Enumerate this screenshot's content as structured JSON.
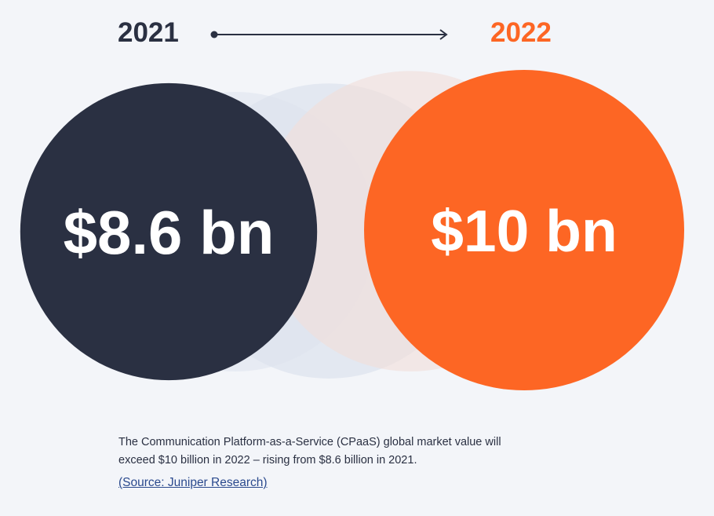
{
  "header": {
    "start_year": "2021",
    "end_year": "2022"
  },
  "chart_data": {
    "type": "bubble",
    "categories": [
      "2021",
      "2022"
    ],
    "values": [
      8.6,
      10
    ],
    "labels": [
      "$8.6 bn",
      "$10 bn"
    ],
    "unit": "billion USD",
    "colors": [
      "#2a3042",
      "#fd6624"
    ]
  },
  "caption": {
    "line1": "The Communication Platform-as-a-Service (CPaaS) global market value will",
    "line2": "exceed $10 billion in 2022 – rising from $8.6 billion in 2021.",
    "source_link": "(Source: Juniper Research)"
  },
  "colors": {
    "dark": "#2a3042",
    "accent": "#fd6624",
    "background": "#f3f5f9",
    "link": "#2b4a8e"
  }
}
